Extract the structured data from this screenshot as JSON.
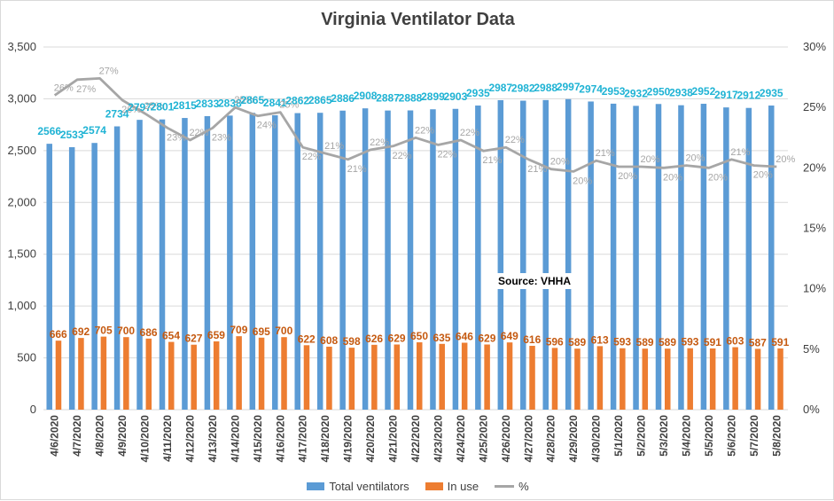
{
  "chart_data": {
    "type": "bar",
    "title": "Virginia Ventilator Data",
    "annotation": "Source: VHHA",
    "categories": [
      "4/6/2020",
      "4/7/2020",
      "4/8/2020",
      "4/9/2020",
      "4/10/2020",
      "4/11/2020",
      "4/12/2020",
      "4/13/2020",
      "4/14/2020",
      "4/15/2020",
      "4/16/2020",
      "4/17/2020",
      "4/18/2020",
      "4/19/2020",
      "4/20/2020",
      "4/21/2020",
      "4/22/2020",
      "4/23/2020",
      "4/24/2020",
      "4/25/2020",
      "4/26/2020",
      "4/27/2020",
      "4/28/2020",
      "4/29/2020",
      "4/30/2020",
      "5/1/2020",
      "5/2/2020",
      "5/3/2020",
      "5/4/2020",
      "5/5/2020",
      "5/6/2020",
      "5/7/2020",
      "5/8/2020"
    ],
    "series": [
      {
        "name": "Total ventilators",
        "type": "bar",
        "axis": "left",
        "color": "#5b9bd5",
        "label_color": "#1fb3d4",
        "values": [
          2566,
          2533,
          2574,
          2734,
          2797,
          2801,
          2815,
          2833,
          2838,
          2865,
          2841,
          2862,
          2865,
          2886,
          2908,
          2887,
          2888,
          2899,
          2903,
          2935,
          2987,
          2982,
          2988,
          2997,
          2974,
          2953,
          2932,
          2950,
          2938,
          2952,
          2917,
          2912,
          2935
        ]
      },
      {
        "name": "In use",
        "type": "bar",
        "axis": "left",
        "color": "#ed7d31",
        "label_color": "#c55a11",
        "values": [
          666,
          692,
          705,
          700,
          686,
          654,
          627,
          659,
          709,
          695,
          700,
          622,
          608,
          598,
          626,
          629,
          650,
          635,
          646,
          629,
          649,
          616,
          596,
          589,
          613,
          593,
          589,
          589,
          593,
          591,
          603,
          587,
          591
        ]
      },
      {
        "name": "%",
        "type": "line",
        "axis": "right",
        "color": "#a6a6a6",
        "values": [
          26,
          27.3,
          27.4,
          25.6,
          24.5,
          23.3,
          22.3,
          23.3,
          25.0,
          24.3,
          24.6,
          21.7,
          21.2,
          20.7,
          21.5,
          21.8,
          22.5,
          21.9,
          22.3,
          21.4,
          21.7,
          20.7,
          19.9,
          19.7,
          20.6,
          20.1,
          20.1,
          20.0,
          20.2,
          20.0,
          20.7,
          20.2,
          20.1
        ],
        "labels": [
          "26%",
          "27%",
          "27%",
          "26%",
          "25%",
          "23%",
          "22%",
          "23%",
          "25%",
          "24%",
          "25%",
          "22%",
          "21%",
          "21%",
          "22%",
          "22%",
          "22%",
          "22%",
          "22%",
          "21%",
          "22%",
          "21%",
          "20%",
          "20%",
          "21%",
          "20%",
          "20%",
          "20%",
          "20%",
          "20%",
          "21%",
          "20%",
          "20%"
        ]
      }
    ],
    "y_left": {
      "min": 0,
      "max": 3500,
      "ticks": [
        "0",
        "500",
        "1,000",
        "1,500",
        "2,000",
        "2,500",
        "3,000",
        "3,500"
      ]
    },
    "y_right": {
      "min": 0,
      "max": 30,
      "ticks": [
        "0%",
        "5%",
        "10%",
        "15%",
        "20%",
        "25%",
        "30%"
      ]
    },
    "grid": true,
    "legend_position": "bottom"
  }
}
